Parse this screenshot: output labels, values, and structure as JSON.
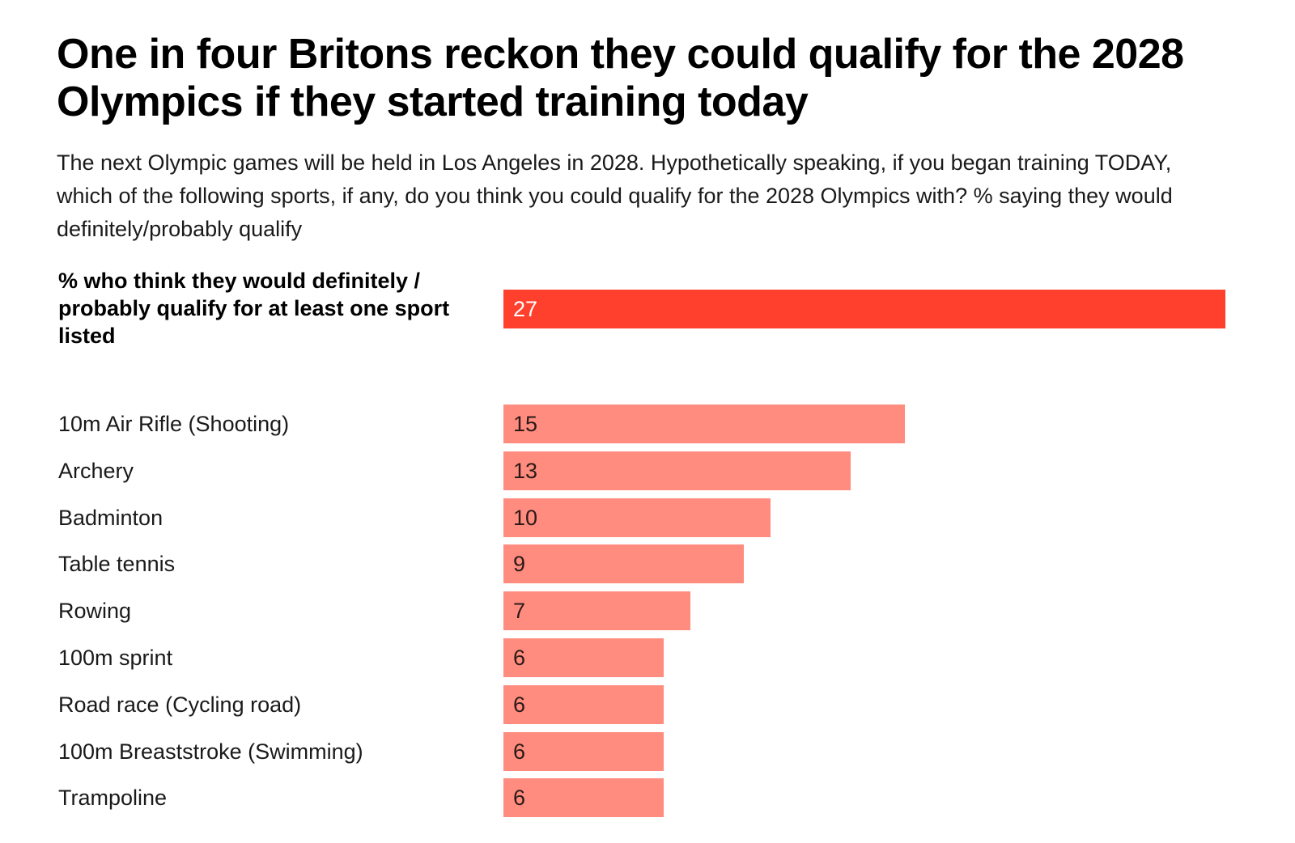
{
  "headline": "One in four Britons reckon they could qualify for the 2028 Olympics if they started training today",
  "subtitle": "The next Olympic games will be held in Los Angeles in 2028. Hypothetically speaking, if you began training TODAY, which of the following sports, if any, do you think you could qualify for the 2028 Olympics with? % saying they would definitely/probably qualify",
  "colors": {
    "summary_bar": "#ff402d",
    "item_bar": "#ff8c7e"
  },
  "chart_data": {
    "type": "bar",
    "orientation": "horizontal",
    "summary": {
      "label": "% who think they would definitely / probably qualify for at least one sport listed",
      "value": 27
    },
    "categories": [
      "10m Air Rifle (Shooting)",
      "Archery",
      "Badminton",
      "Table tennis",
      "Rowing",
      "100m sprint",
      "Road race (Cycling road)",
      "100m Breaststroke (Swimming)",
      "Trampoline"
    ],
    "values": [
      15,
      13,
      10,
      9,
      7,
      6,
      6,
      6,
      6
    ],
    "xlim": [
      0,
      27
    ],
    "grid": false,
    "legend": "none"
  }
}
